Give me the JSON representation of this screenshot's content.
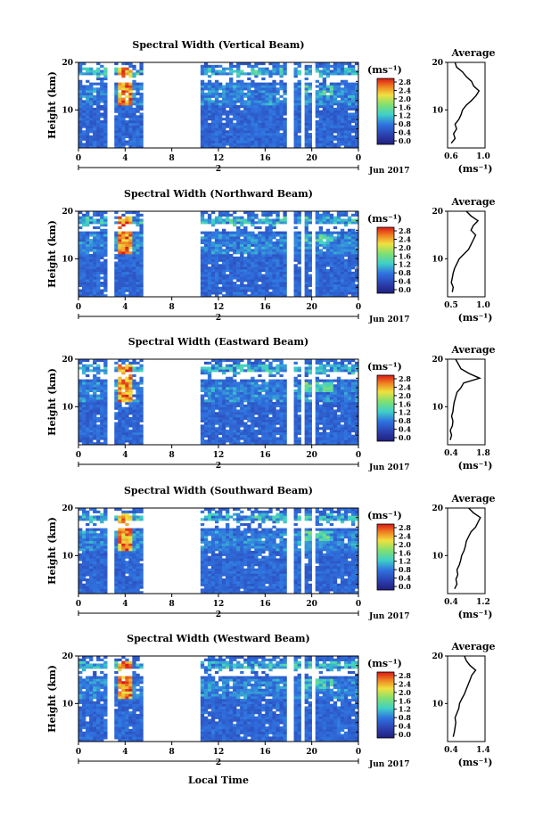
{
  "figure": {
    "xlabel": "Local Time",
    "ylabel": "Height (km)",
    "date_label": "Jun 2017",
    "day_label": "2",
    "avg_title": "Average",
    "avg_xlabel": "(ms⁻¹)",
    "colorbar_unit": "(ms⁻¹)",
    "colorbar_ticks": [
      "2.8",
      "2.4",
      "2.0",
      "1.6",
      "1.2",
      "0.8",
      "0.4",
      "0.0"
    ],
    "colorbar_range": [
      0.0,
      2.8
    ],
    "colors": {
      "low": "#2a3aa8",
      "mid": "#3fd0c8",
      "high": "#d81818"
    }
  },
  "chart_data": [
    {
      "type": "heatmap",
      "title": "Spectral Width (Vertical Beam)",
      "x_ticks": [
        "0",
        "4",
        "8",
        "12",
        "16",
        "20",
        "0"
      ],
      "xlim": [
        0,
        24
      ],
      "ylim": [
        2,
        20
      ],
      "y_ticks": [
        "20",
        "10"
      ],
      "data_gaps_hours": [
        [
          2.5,
          3.1
        ],
        [
          5.4,
          10.6
        ],
        [
          17.8,
          18.4
        ],
        [
          19.0,
          19.4
        ],
        [
          19.9,
          20.2
        ]
      ],
      "profile": {
        "title": "Average",
        "xlim": [
          0.6,
          1.1
        ],
        "x_ticks": [
          "0.6",
          "1.0"
        ],
        "y_ticks": [
          "20",
          "10"
        ],
        "height_km": [
          3,
          4,
          5,
          6,
          7,
          8,
          9,
          10,
          11,
          12,
          13,
          14,
          15,
          16,
          17,
          18,
          19,
          20
        ],
        "value": [
          0.65,
          0.7,
          0.68,
          0.72,
          0.7,
          0.75,
          0.78,
          0.8,
          0.85,
          0.92,
          0.98,
          1.02,
          0.95,
          0.92,
          0.85,
          0.8,
          0.72,
          0.7
        ]
      }
    },
    {
      "type": "heatmap",
      "title": "Spectral Width (Northward Beam)",
      "x_ticks": [
        "0",
        "4",
        "8",
        "12",
        "16",
        "20",
        "0"
      ],
      "xlim": [
        0,
        24
      ],
      "ylim": [
        2,
        20
      ],
      "y_ticks": [
        "20",
        "10"
      ],
      "data_gaps_hours": [
        [
          2.5,
          3.1
        ],
        [
          5.4,
          10.6
        ],
        [
          17.8,
          18.4
        ],
        [
          19.0,
          19.4
        ],
        [
          19.9,
          20.2
        ]
      ],
      "profile": {
        "title": "Average",
        "xlim": [
          0.5,
          1.3
        ],
        "x_ticks": [
          "0.5",
          "1.0"
        ],
        "y_ticks": [
          "20",
          "10"
        ],
        "height_km": [
          3,
          4,
          5,
          6,
          7,
          8,
          9,
          10,
          11,
          12,
          13,
          14,
          15,
          16,
          17,
          18,
          19,
          20
        ],
        "value": [
          0.6,
          0.62,
          0.58,
          0.6,
          0.62,
          0.65,
          0.7,
          0.75,
          0.85,
          0.95,
          1.0,
          1.05,
          1.1,
          1.0,
          1.05,
          1.15,
          1.0,
          0.9
        ]
      }
    },
    {
      "type": "heatmap",
      "title": "Spectral Width (Eastward Beam)",
      "x_ticks": [
        "0",
        "4",
        "8",
        "12",
        "16",
        "20",
        "0"
      ],
      "xlim": [
        0,
        24
      ],
      "ylim": [
        2,
        20
      ],
      "y_ticks": [
        "20",
        "10"
      ],
      "data_gaps_hours": [
        [
          2.5,
          3.1
        ],
        [
          5.4,
          10.6
        ],
        [
          17.8,
          18.4
        ],
        [
          19.0,
          19.4
        ],
        [
          19.9,
          20.2
        ]
      ],
      "profile": {
        "title": "Average",
        "xlim": [
          0.4,
          1.8
        ],
        "x_ticks": [
          "0.4",
          "1.8"
        ],
        "y_ticks": [
          "20",
          "10"
        ],
        "height_km": [
          3,
          4,
          5,
          6,
          7,
          8,
          9,
          10,
          11,
          12,
          13,
          14,
          15,
          16,
          17,
          18,
          19,
          20
        ],
        "value": [
          0.5,
          0.55,
          0.5,
          0.58,
          0.6,
          0.55,
          0.6,
          0.62,
          0.65,
          0.7,
          0.75,
          0.9,
          1.0,
          1.6,
          1.2,
          0.9,
          0.8,
          0.7
        ]
      }
    },
    {
      "type": "heatmap",
      "title": "Spectral Width (Southward Beam)",
      "x_ticks": [
        "0",
        "4",
        "8",
        "12",
        "16",
        "20",
        "0"
      ],
      "xlim": [
        0,
        24
      ],
      "ylim": [
        2,
        20
      ],
      "y_ticks": [
        "20",
        "10"
      ],
      "data_gaps_hours": [
        [
          2.5,
          3.1
        ],
        [
          5.4,
          10.6
        ],
        [
          17.8,
          18.4
        ],
        [
          19.0,
          19.4
        ],
        [
          19.9,
          20.2
        ]
      ],
      "profile": {
        "title": "Average",
        "xlim": [
          0.4,
          1.2
        ],
        "x_ticks": [
          "0.4",
          "1.2"
        ],
        "y_ticks": [
          "20",
          "10"
        ],
        "height_km": [
          3,
          4,
          5,
          6,
          7,
          8,
          9,
          10,
          11,
          12,
          13,
          14,
          15,
          16,
          17,
          18,
          19,
          20
        ],
        "value": [
          0.55,
          0.6,
          0.58,
          0.62,
          0.6,
          0.65,
          0.68,
          0.7,
          0.75,
          0.78,
          0.8,
          0.85,
          0.9,
          1.0,
          1.05,
          1.1,
          0.95,
          0.85
        ]
      }
    },
    {
      "type": "heatmap",
      "title": "Spectral Width (Westward Beam)",
      "x_ticks": [
        "0",
        "4",
        "8",
        "12",
        "16",
        "20",
        "0"
      ],
      "xlim": [
        0,
        24
      ],
      "ylim": [
        2,
        20
      ],
      "y_ticks": [
        "20",
        "10"
      ],
      "data_gaps_hours": [
        [
          2.5,
          3.1
        ],
        [
          5.4,
          10.6
        ],
        [
          17.8,
          18.4
        ],
        [
          19.0,
          19.4
        ],
        [
          19.9,
          20.2
        ]
      ],
      "profile": {
        "title": "Average",
        "xlim": [
          0.4,
          1.4
        ],
        "x_ticks": [
          "0.4",
          "1.4"
        ],
        "y_ticks": [
          "20",
          "10"
        ],
        "height_km": [
          3,
          4,
          5,
          6,
          7,
          8,
          9,
          10,
          11,
          12,
          13,
          14,
          15,
          16,
          17,
          18,
          19,
          20
        ],
        "value": [
          0.55,
          0.58,
          0.6,
          0.62,
          0.6,
          0.65,
          0.7,
          0.72,
          0.78,
          0.85,
          0.9,
          0.95,
          1.0,
          1.05,
          1.15,
          1.0,
          0.9,
          0.85
        ]
      }
    }
  ]
}
